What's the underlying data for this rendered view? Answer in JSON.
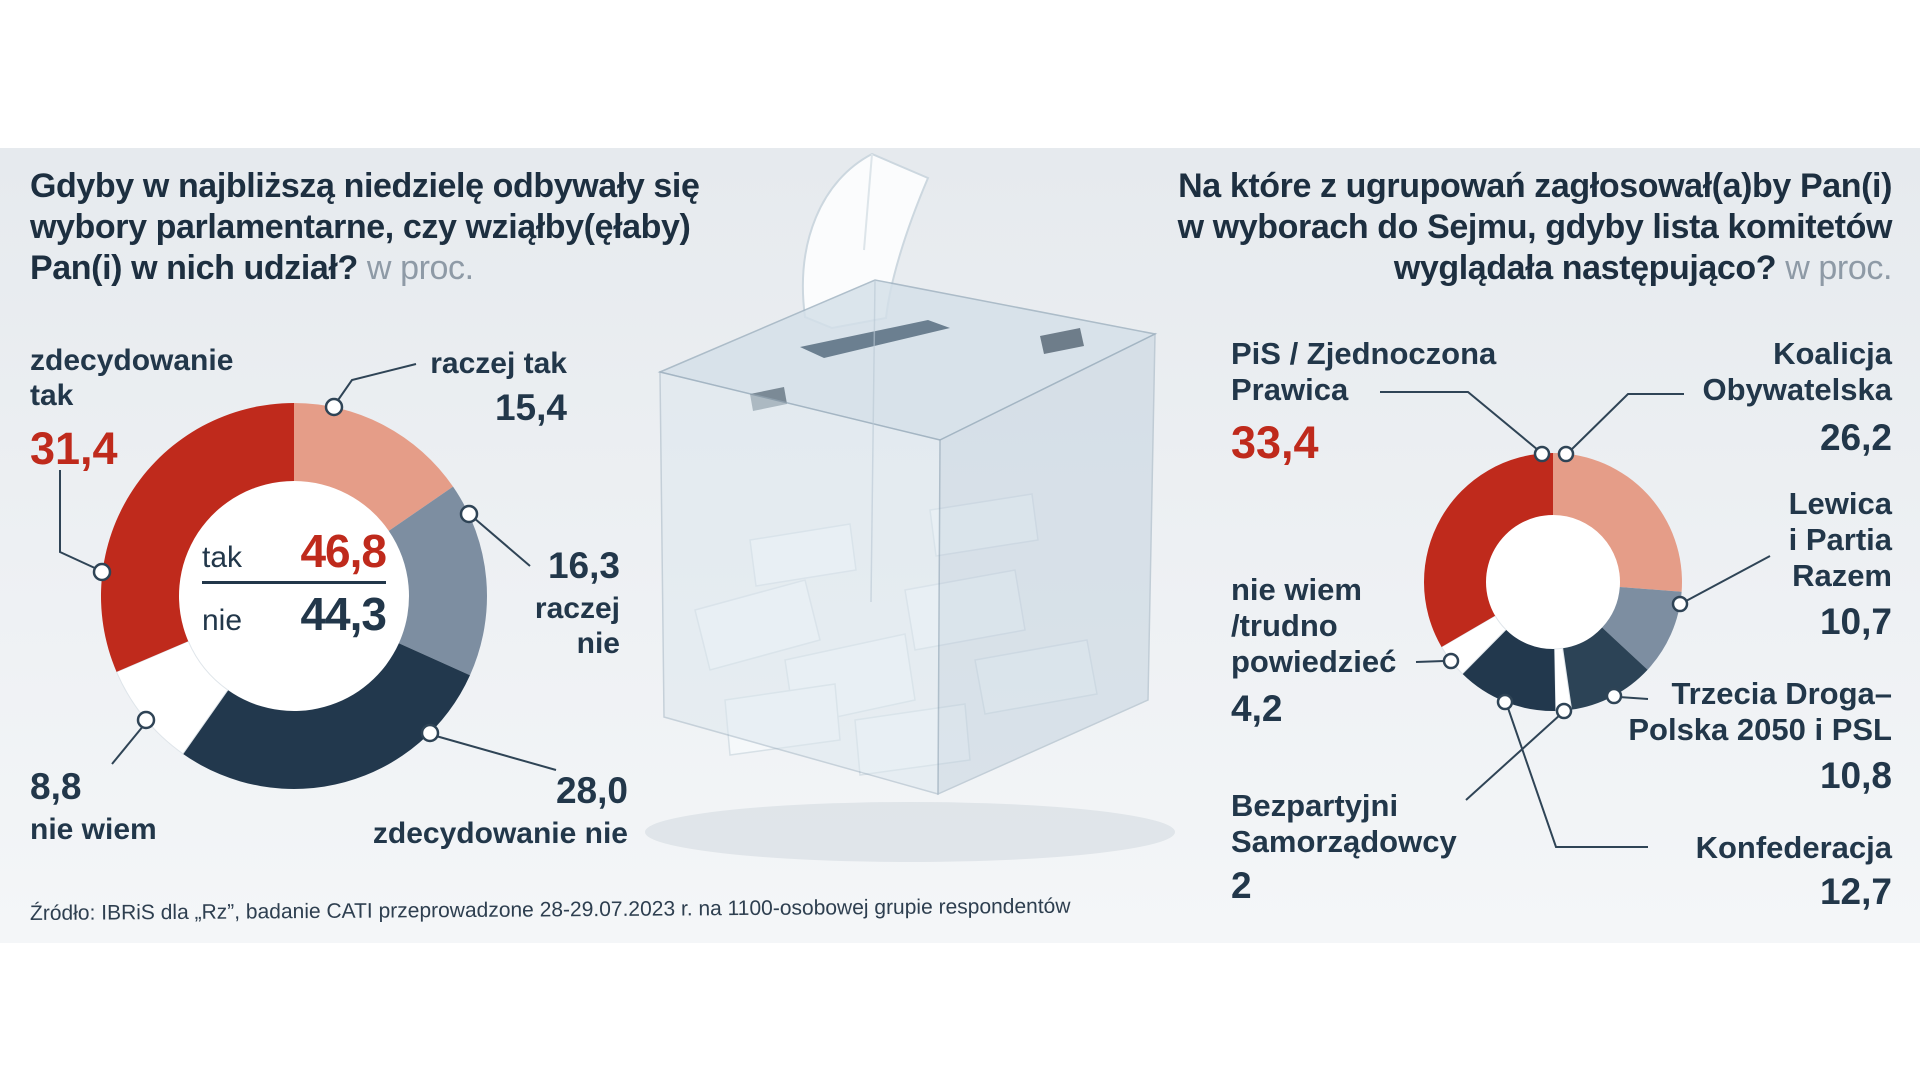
{
  "colors": {
    "red": "#bf2a1c",
    "salmon": "#e59d88",
    "gray_blue": "#7d8ea1",
    "navy": "#2c4356",
    "dark_navy": "#22384d",
    "white_segment": "#ffffff",
    "text_navy": "#22374a",
    "muted_gray": "#8e9aa6"
  },
  "questions": {
    "left": {
      "line1": "Gdyby w najbliższą niedzielę odbywały się",
      "line2": "wybory parlamentarne, czy wziąłby(ęłaby)",
      "line3_bold": "Pan(i) w nich udział?",
      "line3_suffix": " w proc."
    },
    "right": {
      "line1": "Na które z ugrupowań zagłosował(a)by Pan(i)",
      "line2": "w wyborach do Sejmu, gdyby lista komitetów",
      "line3_bold": "wyglądała następująco?",
      "line3_suffix": " w proc."
    }
  },
  "left_callouts": {
    "zdec_tak": {
      "l1": "zdecydowanie",
      "l2": "tak"
    },
    "raczej_tak": {
      "label": "raczej tak"
    },
    "raczej_nie": {
      "l1": "raczej",
      "l2": "nie"
    },
    "zdec_nie": {
      "label": "zdecydowanie nie"
    },
    "nie_wiem": {
      "label": "nie wiem"
    }
  },
  "right_callouts": {
    "pis": {
      "l1": "PiS / Zjednoczona",
      "l2": "Prawica"
    },
    "ko": {
      "l1": "Koalicja",
      "l2": "Obywatelska"
    },
    "lewica": {
      "l1": "Lewica",
      "l2": "i Partia",
      "l3": "Razem"
    },
    "trzecia": {
      "l1": "Trzecia Droga–",
      "l2": "Polska 2050 i PSL"
    },
    "konfederacja": {
      "label": "Konfederacja"
    },
    "bezpartyjni": {
      "l1": "Bezpartyjni",
      "l2": "Samorządowcy"
    },
    "nie_wiem": {
      "l1": "nie wiem",
      "l2": "/trudno",
      "l3": "powiedzieć"
    }
  },
  "source_note": "Źródło: IBRiS dla „Rz”, badanie CATI przeprowadzone 28-29.07.2023 r. na 1100-osobowej grupie respondentów",
  "chart_data": [
    {
      "type": "pie",
      "variant": "donut",
      "title": "Gdyby w najbliższą niedzielę odbywały się wybory parlamentarne, czy wziąłby(ęłaby) Pan(i) w nich udział?",
      "unit": "w proc.",
      "start_angle": "top",
      "direction": "clockwise",
      "legend": "callout-labels",
      "segments": [
        {
          "label": "raczej tak",
          "value": 15.4,
          "display": "15,4",
          "color": "#e59d88"
        },
        {
          "label": "raczej nie",
          "value": 16.3,
          "display": "16,3",
          "color": "#7d8ea1"
        },
        {
          "label": "zdecydowanie nie",
          "value": 28.0,
          "display": "28,0",
          "color": "#22384d"
        },
        {
          "label": "nie wiem",
          "value": 8.8,
          "display": "8,8",
          "color": "#ffffff"
        },
        {
          "label": "zdecydowanie tak",
          "value": 31.4,
          "display": "31,4",
          "color": "#bf2a1c"
        }
      ],
      "center": {
        "tak_label": "tak",
        "tak_value": "46,8",
        "nie_label": "nie",
        "nie_value": "44,3"
      }
    },
    {
      "type": "pie",
      "variant": "donut",
      "title": "Na które z ugrupowań zagłosował(a)by Pan(i) w wyborach do Sejmu, gdyby lista komitetów wyglądała następująco?",
      "unit": "w proc.",
      "start_angle": "top",
      "direction": "clockwise",
      "legend": "callout-labels",
      "segments": [
        {
          "label": "Koalicja Obywatelska",
          "value": 26.2,
          "display": "26,2",
          "color": "#e59d88"
        },
        {
          "label": "Lewica i Partia Razem",
          "value": 10.7,
          "display": "10,7",
          "color": "#7d8ea1"
        },
        {
          "label": "Trzecia Droga–Polska 2050 i PSL",
          "value": 10.8,
          "display": "10,8",
          "color": "#2c4356"
        },
        {
          "label": "Bezpartyjni Samorządowcy",
          "value": 2,
          "display": "2",
          "color": "#ffffff"
        },
        {
          "label": "Konfederacja",
          "value": 12.7,
          "display": "12,7",
          "color": "#22384d"
        },
        {
          "label": "nie wiem /trudno powiedzieć",
          "value": 4.2,
          "display": "4,2",
          "color": "#ffffff"
        },
        {
          "label": "PiS / Zjednoczona Prawica",
          "value": 33.4,
          "display": "33,4",
          "color": "#bf2a1c"
        }
      ]
    }
  ]
}
